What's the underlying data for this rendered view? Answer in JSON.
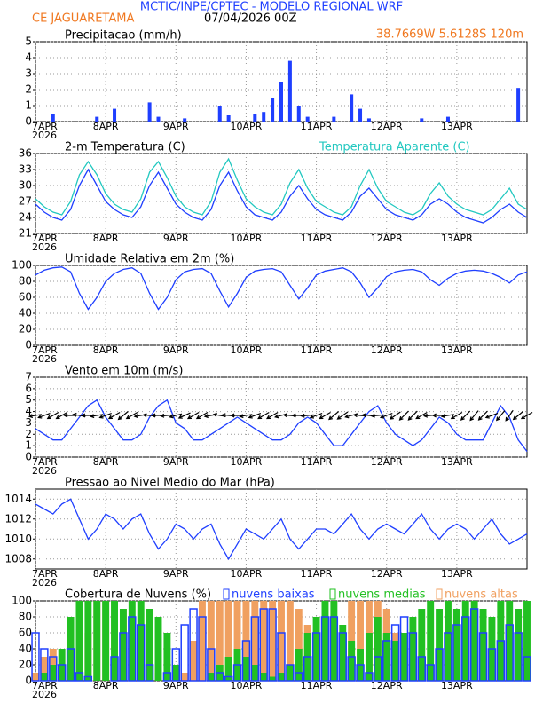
{
  "header": {
    "title": "MCTIC/INPE/CPTEC - MODELO REGIONAL WRF",
    "station": "CE JAGUARETAMA",
    "run": "07/04/2026 00Z",
    "location": "38.7669W 5.6128S 120m",
    "year": "2026"
  },
  "chart_data": [
    {
      "type": "bar",
      "title": "Precipitacao (mm/h)",
      "color": "#1f3fff",
      "ylim": [
        0,
        5
      ],
      "yticks": [
        0,
        1,
        2,
        3,
        4,
        5
      ],
      "grid": true,
      "categories": [
        "7APR",
        null,
        null,
        null,
        null,
        null,
        null,
        null,
        "8APR",
        null,
        null,
        null,
        null,
        null,
        null,
        null,
        "9APR",
        null,
        null,
        null,
        null,
        null,
        null,
        null,
        "10APR",
        null,
        null,
        null,
        null,
        null,
        null,
        null,
        "11APR",
        null,
        null,
        null,
        null,
        null,
        null,
        null,
        "12APR",
        null,
        null,
        null,
        null,
        null,
        null,
        null,
        "13APR",
        null,
        null,
        null,
        null,
        null,
        null,
        null,
        null
      ],
      "values": [
        0,
        0,
        0.5,
        0,
        0,
        0,
        0,
        0.3,
        0,
        0.8,
        0,
        0,
        0,
        1.2,
        0.3,
        0,
        0,
        0.2,
        0,
        0,
        0,
        1,
        0.4,
        0,
        0,
        0.5,
        0.6,
        1.5,
        2.5,
        3.8,
        1,
        0.3,
        0,
        0,
        0.3,
        0,
        1.7,
        0.8,
        0.2,
        0,
        0,
        0,
        0,
        0,
        0.2,
        0,
        0,
        0.3,
        0,
        0,
        0,
        0,
        0,
        0,
        0,
        2.1,
        0
      ]
    },
    {
      "type": "line",
      "ylim": [
        21,
        36
      ],
      "yticks": [
        21,
        24,
        27,
        30,
        33,
        36
      ],
      "grid": true,
      "categories": [
        "7APR",
        null,
        null,
        null,
        null,
        null,
        null,
        null,
        "8APR",
        null,
        null,
        null,
        null,
        null,
        null,
        null,
        "9APR",
        null,
        null,
        null,
        null,
        null,
        null,
        null,
        "10APR",
        null,
        null,
        null,
        null,
        null,
        null,
        null,
        "11APR",
        null,
        null,
        null,
        null,
        null,
        null,
        null,
        "12APR",
        null,
        null,
        null,
        null,
        null,
        null,
        null,
        "13APR",
        null,
        null,
        null,
        null,
        null,
        null,
        null,
        null
      ],
      "series": [
        {
          "name": "2-m Temperatura (C)",
          "color": "#1f3fff",
          "values": [
            26.5,
            25,
            24,
            23.5,
            25.5,
            30,
            33,
            30,
            27,
            25.5,
            24.5,
            24,
            26,
            30,
            32.5,
            29.5,
            26.5,
            25,
            24,
            23.5,
            25.5,
            30,
            32.5,
            29,
            26,
            24.5,
            24,
            23.5,
            25,
            28,
            30,
            27.5,
            25.5,
            24.5,
            24,
            23.5,
            25,
            28,
            29.5,
            27.5,
            25.5,
            24.5,
            24,
            23.5,
            24.5,
            26.5,
            27.5,
            26.5,
            25,
            24,
            23.5,
            23,
            24,
            25.5,
            26.5,
            25,
            24
          ]
        },
        {
          "name": "Temperatura Aparente (C)",
          "color": "#22c8c0",
          "values": [
            27.5,
            26,
            25,
            24.5,
            27,
            32,
            34.5,
            32,
            28.5,
            26.5,
            25.5,
            25,
            27.5,
            32.5,
            34.5,
            31.5,
            28,
            26,
            25,
            24.5,
            27,
            32.5,
            35,
            31,
            27.5,
            26,
            25,
            24.5,
            26.5,
            30.5,
            33,
            29.5,
            27,
            26,
            25,
            24.5,
            26,
            30,
            33,
            29.5,
            27,
            26,
            25,
            24.5,
            25.5,
            28.5,
            30.5,
            28,
            26.5,
            25.5,
            25,
            24.5,
            25.5,
            27.5,
            29.5,
            26.5,
            25.5
          ]
        }
      ]
    },
    {
      "type": "line",
      "title": "Umidade Relativa em 2m (%)",
      "color": "#1f3fff",
      "ylim": [
        0,
        100
      ],
      "yticks": [
        0,
        20,
        40,
        60,
        80,
        100
      ],
      "grid": true,
      "categories": [
        "7APR",
        null,
        null,
        null,
        null,
        null,
        null,
        null,
        "8APR",
        null,
        null,
        null,
        null,
        null,
        null,
        null,
        "9APR",
        null,
        null,
        null,
        null,
        null,
        null,
        null,
        "10APR",
        null,
        null,
        null,
        null,
        null,
        null,
        null,
        "11APR",
        null,
        null,
        null,
        null,
        null,
        null,
        null,
        "12APR",
        null,
        null,
        null,
        null,
        null,
        null,
        null,
        "13APR",
        null,
        null,
        null,
        null,
        null,
        null,
        null,
        null
      ],
      "values": [
        88,
        94,
        97,
        98,
        92,
        65,
        45,
        60,
        80,
        90,
        95,
        97,
        90,
        65,
        45,
        60,
        82,
        92,
        95,
        96,
        90,
        68,
        48,
        65,
        85,
        93,
        95,
        96,
        92,
        75,
        58,
        72,
        88,
        93,
        95,
        97,
        92,
        78,
        60,
        72,
        86,
        92,
        94,
        95,
        92,
        82,
        75,
        84,
        90,
        93,
        94,
        93,
        90,
        85,
        78,
        88,
        92
      ]
    },
    {
      "type": "line",
      "title": "Vento em 10m (m/s)",
      "color": "#1f3fff",
      "ylim": [
        0,
        7
      ],
      "yticks": [
        0,
        1,
        2,
        3,
        4,
        5,
        6,
        7
      ],
      "grid": true,
      "categories": [
        "7APR",
        null,
        null,
        null,
        null,
        null,
        null,
        null,
        "8APR",
        null,
        null,
        null,
        null,
        null,
        null,
        null,
        "9APR",
        null,
        null,
        null,
        null,
        null,
        null,
        null,
        "10APR",
        null,
        null,
        null,
        null,
        null,
        null,
        null,
        "11APR",
        null,
        null,
        null,
        null,
        null,
        null,
        null,
        "12APR",
        null,
        null,
        null,
        null,
        null,
        null,
        null,
        "13APR",
        null,
        null,
        null,
        null,
        null,
        null,
        null,
        null
      ],
      "values": [
        2.5,
        2,
        1.5,
        1.5,
        2.5,
        3.5,
        4.5,
        5,
        3.5,
        2.5,
        1.5,
        1.5,
        2,
        3.5,
        4.5,
        5,
        3,
        2.5,
        1.5,
        1.5,
        2,
        2.5,
        3,
        3.5,
        3,
        2.5,
        2,
        1.5,
        1.5,
        2,
        3,
        3.5,
        3,
        2,
        1,
        1,
        2,
        3,
        4,
        4.5,
        3,
        2,
        1.5,
        1,
        1.5,
        2.5,
        3.5,
        3,
        2,
        1.5,
        1.5,
        1.5,
        3,
        4.5,
        3.5,
        1.5,
        0.5
      ],
      "directions": [
        80,
        70,
        60,
        60,
        90,
        100,
        90,
        80,
        70,
        60,
        50,
        60,
        80,
        95,
        90,
        85,
        75,
        65,
        60,
        60,
        80,
        100,
        95,
        90,
        80,
        70,
        60,
        60,
        75,
        95,
        90,
        85,
        70,
        60,
        50,
        55,
        75,
        95,
        95,
        85,
        70,
        55,
        45,
        45,
        60,
        85,
        90,
        80,
        60,
        45,
        40,
        45,
        70,
        40,
        35,
        50,
        60
      ]
    },
    {
      "type": "line",
      "title": "Pressao ao Nivel Medio do Mar (hPa)",
      "color": "#1f3fff",
      "ylim": [
        1007,
        1015
      ],
      "yticks": [
        1008,
        1010,
        1012,
        1014
      ],
      "grid": true,
      "categories": [
        "7APR",
        null,
        null,
        null,
        null,
        null,
        null,
        null,
        "8APR",
        null,
        null,
        null,
        null,
        null,
        null,
        null,
        "9APR",
        null,
        null,
        null,
        null,
        null,
        null,
        null,
        "10APR",
        null,
        null,
        null,
        null,
        null,
        null,
        null,
        "11APR",
        null,
        null,
        null,
        null,
        null,
        null,
        null,
        "12APR",
        null,
        null,
        null,
        null,
        null,
        null,
        null,
        "13APR",
        null,
        null,
        null,
        null,
        null,
        null,
        null,
        null
      ],
      "values": [
        1013.5,
        1013,
        1012.5,
        1013.5,
        1014,
        1012,
        1010,
        1011,
        1012.5,
        1012,
        1011,
        1012,
        1012.5,
        1010.5,
        1009,
        1010,
        1011.5,
        1011,
        1010,
        1011,
        1011.5,
        1009.5,
        1008,
        1009.5,
        1011,
        1010.5,
        1010,
        1011,
        1012,
        1010,
        1009,
        1010,
        1011,
        1011,
        1010.5,
        1011.5,
        1012.5,
        1011,
        1010,
        1011,
        1011.5,
        1011,
        1010.5,
        1011.5,
        1012.5,
        1011,
        1010,
        1011,
        1011.5,
        1011,
        1010,
        1011,
        1012,
        1010.5,
        1009.5,
        1010,
        1010.5
      ]
    },
    {
      "type": "cloud",
      "title": "Cobertura de Nuvens (%)",
      "ylim": [
        0,
        100
      ],
      "yticks": [
        0,
        20,
        40,
        60,
        80,
        100
      ],
      "grid": true,
      "categories": [
        "7APR",
        null,
        null,
        null,
        null,
        null,
        null,
        null,
        "8APR",
        null,
        null,
        null,
        null,
        null,
        null,
        null,
        "9APR",
        null,
        null,
        null,
        null,
        null,
        null,
        null,
        "10APR",
        null,
        null,
        null,
        null,
        null,
        null,
        null,
        "11APR",
        null,
        null,
        null,
        null,
        null,
        null,
        null,
        "12APR",
        null,
        null,
        null,
        null,
        null,
        null,
        null,
        "13APR",
        null,
        null,
        null,
        null,
        null,
        null,
        null,
        null
      ],
      "series": [
        {
          "name": "nuvens baixas",
          "color": "#1f3fff",
          "values": [
            60,
            40,
            30,
            20,
            40,
            10,
            5,
            0,
            0,
            30,
            60,
            80,
            70,
            20,
            0,
            10,
            40,
            70,
            90,
            80,
            40,
            10,
            5,
            20,
            50,
            80,
            90,
            90,
            60,
            20,
            10,
            30,
            60,
            80,
            80,
            60,
            30,
            20,
            10,
            30,
            50,
            70,
            80,
            60,
            30,
            20,
            40,
            60,
            70,
            80,
            90,
            60,
            40,
            50,
            70,
            60,
            30
          ]
        },
        {
          "name": "nuvens medias",
          "color": "#22c022",
          "values": [
            0,
            10,
            20,
            40,
            80,
            100,
            100,
            100,
            100,
            100,
            90,
            100,
            100,
            90,
            80,
            60,
            20,
            0,
            0,
            0,
            10,
            20,
            30,
            40,
            30,
            20,
            10,
            5,
            10,
            20,
            40,
            60,
            80,
            100,
            100,
            70,
            50,
            40,
            60,
            80,
            60,
            50,
            60,
            80,
            90,
            100,
            90,
            100,
            90,
            100,
            100,
            90,
            80,
            100,
            100,
            90,
            100
          ]
        },
        {
          "name": "nuvens altas",
          "color": "#f0a060",
          "values": [
            10,
            30,
            40,
            20,
            10,
            30,
            60,
            100,
            100,
            100,
            90,
            60,
            40,
            20,
            10,
            0,
            0,
            10,
            50,
            100,
            100,
            100,
            100,
            100,
            100,
            100,
            100,
            100,
            100,
            100,
            90,
            70,
            60,
            40,
            30,
            60,
            100,
            100,
            100,
            100,
            90,
            60,
            40,
            20,
            10,
            5,
            10,
            20,
            10,
            5,
            5,
            10,
            20,
            30,
            20,
            10,
            10
          ]
        }
      ]
    }
  ]
}
